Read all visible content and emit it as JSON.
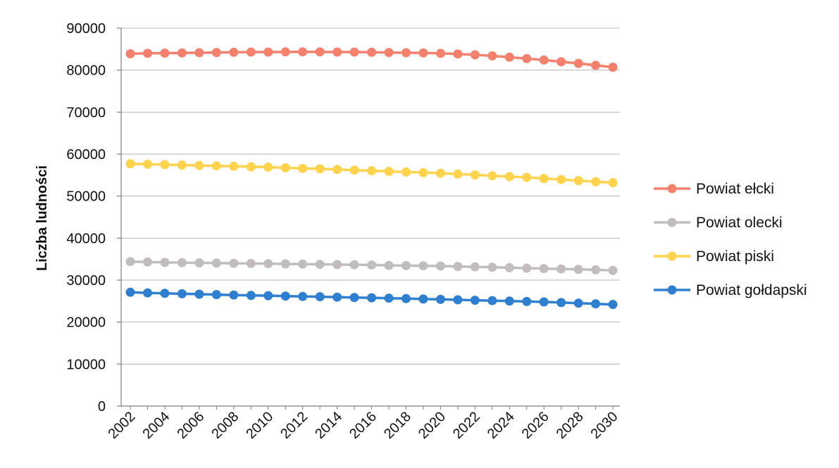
{
  "chart_data": {
    "type": "line",
    "title": "",
    "xlabel": "",
    "ylabel": "Liczba ludności",
    "ylim": [
      0,
      90000
    ],
    "yticks": [
      0,
      10000,
      20000,
      30000,
      40000,
      50000,
      60000,
      70000,
      80000,
      90000
    ],
    "xticks": [
      2002,
      2004,
      2006,
      2008,
      2010,
      2012,
      2014,
      2016,
      2018,
      2020,
      2022,
      2024,
      2026,
      2028,
      2030
    ],
    "x": [
      2002,
      2003,
      2004,
      2005,
      2006,
      2007,
      2008,
      2009,
      2010,
      2011,
      2012,
      2013,
      2014,
      2015,
      2016,
      2017,
      2018,
      2019,
      2020,
      2021,
      2022,
      2023,
      2024,
      2025,
      2026,
      2027,
      2028,
      2029,
      2030
    ],
    "grid": true,
    "legend_position": "right",
    "series": [
      {
        "name": "Powiat ełcki",
        "color": "#F4806E",
        "values": [
          83900,
          84000,
          84050,
          84100,
          84150,
          84200,
          84250,
          84300,
          84300,
          84350,
          84350,
          84350,
          84300,
          84300,
          84250,
          84200,
          84150,
          84100,
          84000,
          83850,
          83650,
          83400,
          83100,
          82750,
          82400,
          82000,
          81600,
          81150,
          80700
        ]
      },
      {
        "name": "Powiat olecki",
        "color": "#C2BDBD",
        "values": [
          34400,
          34300,
          34200,
          34150,
          34100,
          34050,
          34000,
          33950,
          33900,
          33850,
          33800,
          33750,
          33700,
          33650,
          33600,
          33500,
          33450,
          33400,
          33350,
          33250,
          33150,
          33050,
          32950,
          32850,
          32750,
          32650,
          32550,
          32450,
          32300
        ]
      },
      {
        "name": "Powiat piski",
        "color": "#FFD34E",
        "values": [
          57700,
          57600,
          57500,
          57400,
          57300,
          57200,
          57100,
          57000,
          56900,
          56750,
          56600,
          56500,
          56350,
          56200,
          56050,
          55900,
          55750,
          55600,
          55450,
          55250,
          55050,
          54850,
          54650,
          54450,
          54200,
          53950,
          53700,
          53450,
          53200
        ]
      },
      {
        "name": "Powiat gołdapski",
        "color": "#2F7FD1",
        "values": [
          27100,
          26950,
          26850,
          26750,
          26650,
          26550,
          26450,
          26350,
          26300,
          26200,
          26100,
          26050,
          25950,
          25850,
          25800,
          25700,
          25600,
          25500,
          25400,
          25300,
          25200,
          25100,
          25000,
          24900,
          24800,
          24650,
          24500,
          24350,
          24200
        ]
      }
    ]
  }
}
